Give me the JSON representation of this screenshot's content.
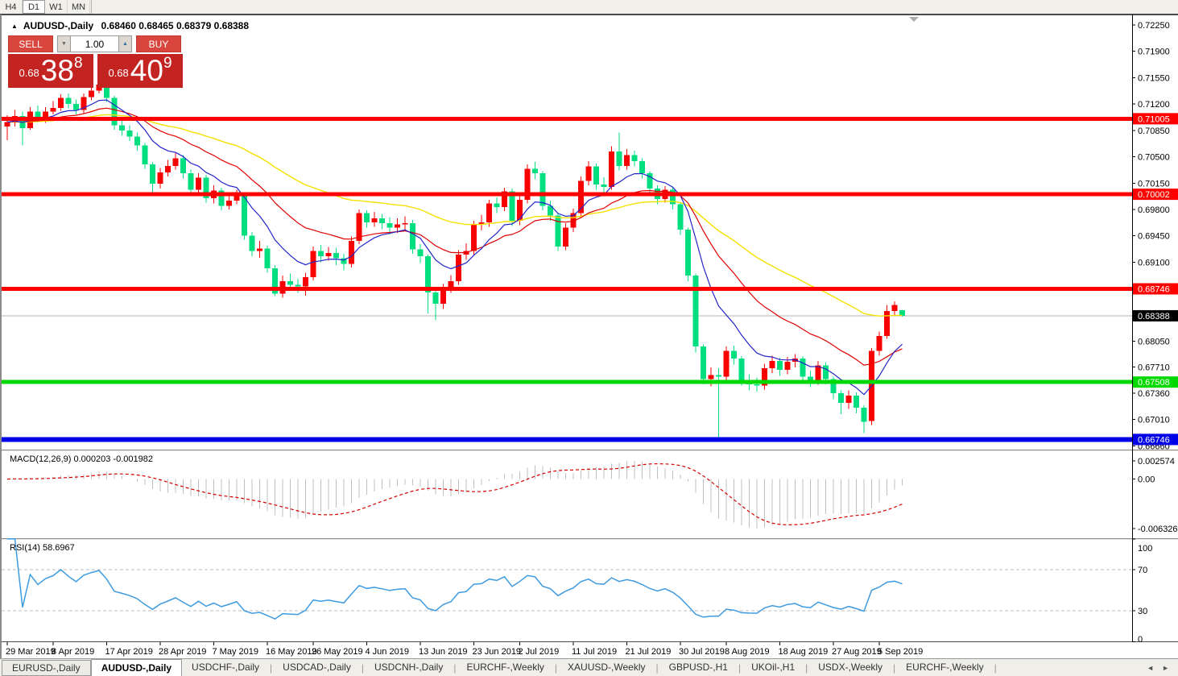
{
  "toolbar": {
    "timeframes": [
      "H4",
      "D1",
      "W1",
      "MN"
    ],
    "active": "D1"
  },
  "chart_header": {
    "collapse_icon": "▲",
    "title": "AUDUSD-,Daily",
    "ohlc_text": "0.68460 0.68465 0.68379 0.68388"
  },
  "trade_panel": {
    "sell_label": "SELL",
    "buy_label": "BUY",
    "volume": "1.00",
    "sell_price": {
      "prefix": "0.68",
      "big": "38",
      "sup": "8"
    },
    "buy_price": {
      "prefix": "0.68",
      "big": "40",
      "sup": "9"
    }
  },
  "indicator_labels": {
    "macd": "MACD(12,26,9) 0.000203 -0.001982",
    "rsi": "RSI(14) 58.6967"
  },
  "tabs": {
    "items": [
      "EURUSD-,Daily",
      "AUDUSD-,Daily",
      "USDCHF-,Daily",
      "USDCAD-,Daily",
      "USDCNH-,Daily",
      "EURCHF-,Weekly",
      "XAUUSD-,Weekly",
      "GBPUSD-,H1",
      "UKOil-,H1",
      "USDX-,Weekly",
      "EURCHF-,Weekly"
    ],
    "active_index": 1,
    "nav_left": "◄",
    "nav_right": "►"
  },
  "chart_data": {
    "type": "candlestick",
    "symbol": "AUDUSD",
    "timeframe": "Daily",
    "colors": {
      "bull": "#F80000",
      "bear": "#00DF80",
      "ma_fast": "#2425C9",
      "ma_mid": "#E10000",
      "ma_slow": "#F5E100",
      "macd_hist": "#BFBFBF",
      "macd_signal": "#D40000",
      "rsi_line": "#3E9BE0",
      "bid_line": "#B4B4B4"
    },
    "ma_periods": {
      "fast": 9,
      "mid": 21,
      "slow": 48
    },
    "macd_params": [
      12,
      26,
      9
    ],
    "rsi_period": 14,
    "ylim": [
      0.6661,
      0.723
    ],
    "price_ticks": [
      "0.72250",
      "0.71900",
      "0.71550",
      "0.71200",
      "0.70850",
      "0.70500",
      "0.70150",
      "0.69800",
      "0.69450",
      "0.69100",
      "0.68050",
      "0.67710",
      "0.67360",
      "0.67010",
      "0.66660"
    ],
    "macd_axis": {
      "max": "0.002574",
      "zero": "0.00",
      "min": "-0.006326"
    },
    "rsi_axis": [
      "100",
      "70",
      "30",
      "0"
    ],
    "rsi_guides": [
      70,
      30
    ],
    "levels": [
      {
        "price": 0.71005,
        "label": "0.71005",
        "color": "#FE0000",
        "thickness": 5
      },
      {
        "price": 0.70002,
        "label": "0.70002",
        "color": "#FE0000",
        "thickness": 5
      },
      {
        "price": 0.68746,
        "label": "0.68746",
        "color": "#FE0000",
        "thickness": 5
      },
      {
        "price": 0.67508,
        "label": "0.67508",
        "color": "#00D900",
        "thickness": 5
      },
      {
        "price": 0.66746,
        "label": "0.66746",
        "color": "#0000E8",
        "thickness": 6
      }
    ],
    "bid": {
      "price": 0.68388,
      "label": "0.68388"
    },
    "date_labels": [
      {
        "text": "29 Mar 2019",
        "bar": 0
      },
      {
        "text": "8 Apr 2019",
        "bar": 6
      },
      {
        "text": "17 Apr 2019",
        "bar": 13
      },
      {
        "text": "28 Apr 2019",
        "bar": 20
      },
      {
        "text": "7 May 2019",
        "bar": 27
      },
      {
        "text": "16 May 2019",
        "bar": 34
      },
      {
        "text": "26 May 2019",
        "bar": 40
      },
      {
        "text": "4 Jun 2019",
        "bar": 47
      },
      {
        "text": "13 Jun 2019",
        "bar": 54
      },
      {
        "text": "23 Jun 2019",
        "bar": 61
      },
      {
        "text": "2 Jul 2019",
        "bar": 67
      },
      {
        "text": "11 Jul 2019",
        "bar": 74
      },
      {
        "text": "21 Jul 2019",
        "bar": 81
      },
      {
        "text": "30 Jul 2019",
        "bar": 88
      },
      {
        "text": "8 Aug 2019",
        "bar": 94
      },
      {
        "text": "18 Aug 2019",
        "bar": 101
      },
      {
        "text": "27 Aug 2019",
        "bar": 108
      },
      {
        "text": "5 Sep 2019",
        "bar": 114
      }
    ],
    "ohlc": [
      [
        0.709,
        0.7105,
        0.7072,
        0.7096
      ],
      [
        0.7096,
        0.7112,
        0.709,
        0.7104
      ],
      [
        0.7104,
        0.711,
        0.7065,
        0.7088
      ],
      [
        0.7088,
        0.7116,
        0.7086,
        0.711
      ],
      [
        0.711,
        0.7118,
        0.7096,
        0.7102
      ],
      [
        0.7102,
        0.7116,
        0.7095,
        0.711
      ],
      [
        0.711,
        0.7124,
        0.7106,
        0.7115
      ],
      [
        0.7115,
        0.7133,
        0.7111,
        0.7128
      ],
      [
        0.7128,
        0.7134,
        0.7114,
        0.712
      ],
      [
        0.712,
        0.7126,
        0.7106,
        0.7112
      ],
      [
        0.7112,
        0.7134,
        0.7108,
        0.7129
      ],
      [
        0.7129,
        0.7144,
        0.7125,
        0.7138
      ],
      [
        0.7138,
        0.7156,
        0.7134,
        0.7146
      ],
      [
        0.7146,
        0.715,
        0.7123,
        0.7128
      ],
      [
        0.7128,
        0.7131,
        0.7086,
        0.7092
      ],
      [
        0.7092,
        0.7101,
        0.7078,
        0.7085
      ],
      [
        0.7085,
        0.7092,
        0.7071,
        0.7077
      ],
      [
        0.7077,
        0.7082,
        0.7058,
        0.7065
      ],
      [
        0.7065,
        0.7068,
        0.7034,
        0.704
      ],
      [
        0.704,
        0.7043,
        0.6998,
        0.7014
      ],
      [
        0.7014,
        0.7035,
        0.7008,
        0.7029
      ],
      [
        0.7029,
        0.7046,
        0.7024,
        0.7038
      ],
      [
        0.7038,
        0.7055,
        0.7033,
        0.7048
      ],
      [
        0.7048,
        0.7052,
        0.7021,
        0.7028
      ],
      [
        0.7028,
        0.7033,
        0.7,
        0.7006
      ],
      [
        0.7006,
        0.7028,
        0.7001,
        0.7022
      ],
      [
        0.7022,
        0.7026,
        0.6989,
        0.6995
      ],
      [
        0.6995,
        0.7012,
        0.6988,
        0.7005
      ],
      [
        0.7005,
        0.7009,
        0.6979,
        0.6985
      ],
      [
        0.6985,
        0.7001,
        0.698,
        0.6992
      ],
      [
        0.6992,
        0.7006,
        0.6987,
        0.7
      ],
      [
        0.7,
        0.7001,
        0.694,
        0.6945
      ],
      [
        0.6945,
        0.695,
        0.6918,
        0.6925
      ],
      [
        0.6925,
        0.6938,
        0.6916,
        0.6928
      ],
      [
        0.6928,
        0.6932,
        0.6896,
        0.6902
      ],
      [
        0.6902,
        0.6906,
        0.6865,
        0.6868
      ],
      [
        0.6868,
        0.6892,
        0.6863,
        0.6885
      ],
      [
        0.6885,
        0.6895,
        0.6874,
        0.688
      ],
      [
        0.688,
        0.6888,
        0.6869,
        0.6878
      ],
      [
        0.6878,
        0.6896,
        0.68655,
        0.689
      ],
      [
        0.689,
        0.6931,
        0.6886,
        0.6925
      ],
      [
        0.6925,
        0.6933,
        0.691,
        0.6918
      ],
      [
        0.6918,
        0.693,
        0.6912,
        0.6922
      ],
      [
        0.6922,
        0.6929,
        0.6906,
        0.6915
      ],
      [
        0.6915,
        0.6921,
        0.6899,
        0.6908
      ],
      [
        0.6908,
        0.6944,
        0.6903,
        0.6938
      ],
      [
        0.6938,
        0.698,
        0.6934,
        0.6975
      ],
      [
        0.6975,
        0.6979,
        0.6956,
        0.6963
      ],
      [
        0.6963,
        0.6977,
        0.6957,
        0.6968
      ],
      [
        0.6968,
        0.6974,
        0.6954,
        0.6962
      ],
      [
        0.6962,
        0.697,
        0.6947,
        0.6956
      ],
      [
        0.6956,
        0.6968,
        0.6949,
        0.696
      ],
      [
        0.696,
        0.6971,
        0.6952,
        0.6962
      ],
      [
        0.6962,
        0.6966,
        0.6921,
        0.6927
      ],
      [
        0.6927,
        0.6934,
        0.6909,
        0.6918
      ],
      [
        0.6918,
        0.692,
        0.6842,
        0.687
      ],
      [
        0.687,
        0.6876,
        0.6833,
        0.6855
      ],
      [
        0.6855,
        0.6881,
        0.6848,
        0.6875
      ],
      [
        0.6875,
        0.6893,
        0.6869,
        0.6885
      ],
      [
        0.6885,
        0.6926,
        0.688,
        0.692
      ],
      [
        0.692,
        0.6935,
        0.6913,
        0.6925
      ],
      [
        0.6925,
        0.6965,
        0.692,
        0.696
      ],
      [
        0.696,
        0.6973,
        0.6952,
        0.6963
      ],
      [
        0.6963,
        0.6993,
        0.6957,
        0.6988
      ],
      [
        0.6988,
        0.6996,
        0.6975,
        0.6983
      ],
      [
        0.6983,
        0.7009,
        0.6978,
        0.7004
      ],
      [
        0.7004,
        0.7008,
        0.6958,
        0.6965
      ],
      [
        0.6965,
        0.6999,
        0.6959,
        0.6993
      ],
      [
        0.6993,
        0.704,
        0.6988,
        0.7034
      ],
      [
        0.7034,
        0.7043,
        0.702,
        0.7028
      ],
      [
        0.7028,
        0.7031,
        0.6979,
        0.6985
      ],
      [
        0.6985,
        0.6992,
        0.6965,
        0.6972
      ],
      [
        0.6972,
        0.6975,
        0.6925,
        0.6931
      ],
      [
        0.6931,
        0.6962,
        0.6926,
        0.6956
      ],
      [
        0.6956,
        0.6981,
        0.695,
        0.6975
      ],
      [
        0.6975,
        0.7024,
        0.697,
        0.7018
      ],
      [
        0.7018,
        0.7044,
        0.7012,
        0.7037
      ],
      [
        0.7037,
        0.7041,
        0.7006,
        0.7013
      ],
      [
        0.7013,
        0.7023,
        0.7002,
        0.701
      ],
      [
        0.701,
        0.7064,
        0.7006,
        0.7057
      ],
      [
        0.7057,
        0.7082,
        0.7032,
        0.7038
      ],
      [
        0.7038,
        0.706,
        0.7033,
        0.7052
      ],
      [
        0.7052,
        0.7058,
        0.7037,
        0.7044
      ],
      [
        0.7044,
        0.7048,
        0.7021,
        0.7028
      ],
      [
        0.7028,
        0.7031,
        0.7001,
        0.7008
      ],
      [
        0.7008,
        0.7012,
        0.6987,
        0.6994
      ],
      [
        0.6994,
        0.7011,
        0.6989,
        0.7006
      ],
      [
        0.7006,
        0.7009,
        0.698,
        0.6987
      ],
      [
        0.6987,
        0.6989,
        0.6946,
        0.6953
      ],
      [
        0.6953,
        0.6956,
        0.6885,
        0.6892
      ],
      [
        0.6892,
        0.6895,
        0.679,
        0.6798
      ],
      [
        0.6798,
        0.6801,
        0.6748,
        0.6755
      ],
      [
        0.6755,
        0.677,
        0.6745,
        0.676
      ],
      [
        0.676,
        0.6769,
        0.6677,
        0.6758
      ],
      [
        0.6758,
        0.6798,
        0.6752,
        0.6792
      ],
      [
        0.6792,
        0.6799,
        0.6774,
        0.6782
      ],
      [
        0.6782,
        0.6785,
        0.6746,
        0.6753
      ],
      [
        0.6753,
        0.6761,
        0.674,
        0.6748
      ],
      [
        0.6748,
        0.6757,
        0.6738,
        0.6746
      ],
      [
        0.6746,
        0.6775,
        0.6741,
        0.6769
      ],
      [
        0.6769,
        0.6786,
        0.6763,
        0.6779
      ],
      [
        0.6779,
        0.6783,
        0.6759,
        0.6767
      ],
      [
        0.6767,
        0.6784,
        0.6761,
        0.6778
      ],
      [
        0.6778,
        0.6788,
        0.677,
        0.6782
      ],
      [
        0.6782,
        0.6785,
        0.6751,
        0.6758
      ],
      [
        0.6758,
        0.6766,
        0.6744,
        0.6752
      ],
      [
        0.6752,
        0.6779,
        0.6747,
        0.6773
      ],
      [
        0.6773,
        0.6777,
        0.6748,
        0.6755
      ],
      [
        0.6755,
        0.6758,
        0.6728,
        0.6736
      ],
      [
        0.6736,
        0.674,
        0.6708,
        0.6723
      ],
      [
        0.6723,
        0.674,
        0.6715,
        0.6733
      ],
      [
        0.6733,
        0.6737,
        0.6709,
        0.6717
      ],
      [
        0.6717,
        0.672,
        0.6683,
        0.6698
      ],
      [
        0.6699,
        0.6796,
        0.6694,
        0.6792
      ],
      [
        0.6792,
        0.6818,
        0.6786,
        0.6812
      ],
      [
        0.6812,
        0.6853,
        0.6808,
        0.6845
      ],
      [
        0.6845,
        0.6858,
        0.684,
        0.6853
      ],
      [
        0.6846,
        0.68465,
        0.68379,
        0.68388
      ]
    ]
  }
}
